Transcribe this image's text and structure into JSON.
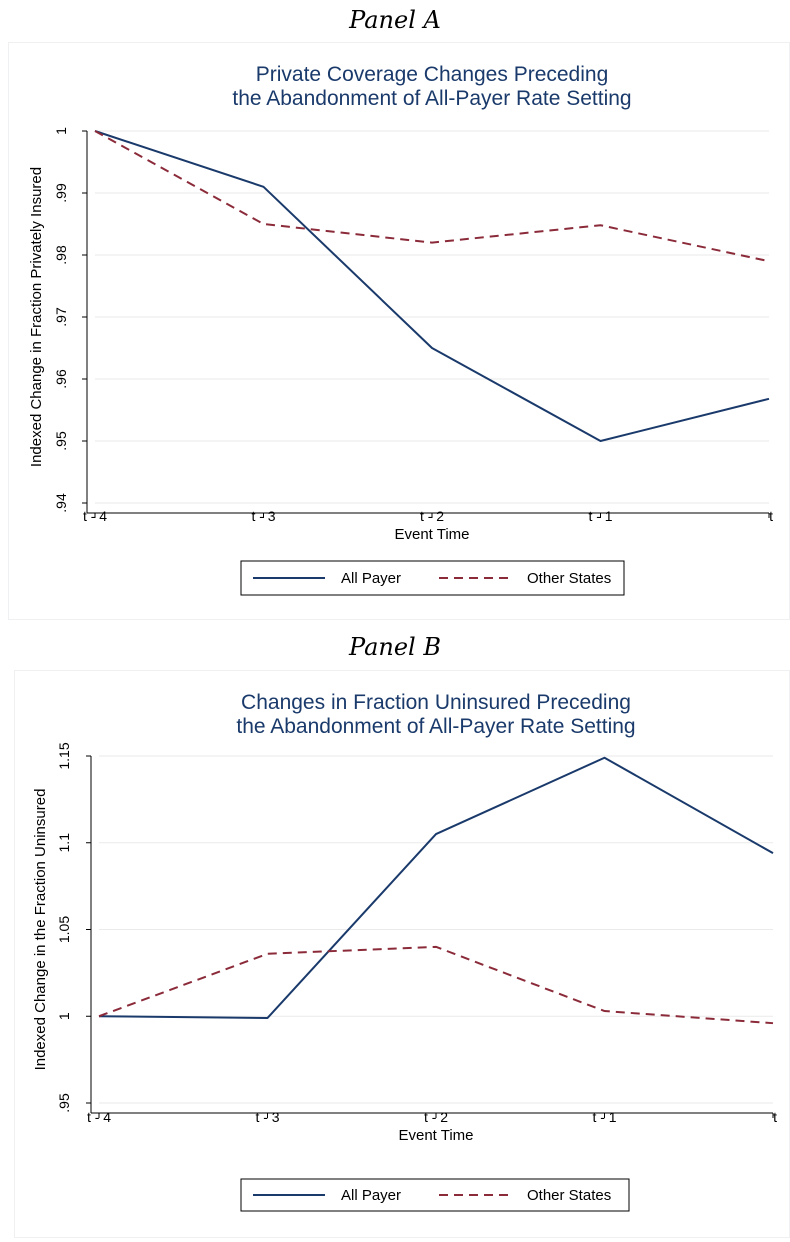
{
  "panel_a_label": "Panel A",
  "panel_b_label": "Panel B",
  "chart_data": [
    {
      "type": "line",
      "title_lines": [
        "Private Coverage Changes Preceding",
        "the Abandonment of All-Payer Rate Setting"
      ],
      "xlabel": "Event Time",
      "ylabel": "Indexed Change in Fraction Privately Insured",
      "categories": [
        "t - 4",
        "t - 3",
        "t - 2",
        "t - 1",
        "t"
      ],
      "ylim": [
        0.94,
        1.0
      ],
      "yticks": [
        0.94,
        0.95,
        0.96,
        0.97,
        0.98,
        0.99,
        1
      ],
      "ytick_labels": [
        ".94",
        ".95",
        ".96",
        ".97",
        ".98",
        ".99",
        "1"
      ],
      "grid": true,
      "legend_position": "bottom",
      "series": [
        {
          "name": "All Payer",
          "values": [
            1.0,
            0.991,
            0.965,
            0.95,
            0.9568
          ],
          "color": "#1a3a6b",
          "dash": "solid"
        },
        {
          "name": "Other States",
          "values": [
            1.0,
            0.985,
            0.982,
            0.9848,
            0.979
          ],
          "color": "#8b2b3a",
          "dash": "dashed"
        }
      ]
    },
    {
      "type": "line",
      "title_lines": [
        "Changes in Fraction Uninsured Preceding",
        "the Abandonment of All-Payer Rate Setting"
      ],
      "xlabel": "Event Time",
      "ylabel": "Indexed Change in the Fraction Uninsured",
      "categories": [
        "t - 4",
        "t - 3",
        "t - 2",
        "t - 1",
        "t"
      ],
      "ylim": [
        0.95,
        1.15
      ],
      "yticks": [
        0.95,
        1,
        1.05,
        1.1,
        1.15
      ],
      "ytick_labels": [
        ".95",
        "1",
        "1.05",
        "1.1",
        "1.15"
      ],
      "grid": true,
      "legend_position": "bottom",
      "series": [
        {
          "name": "All Payer",
          "values": [
            1.0,
            0.999,
            1.105,
            1.149,
            1.094
          ],
          "color": "#1a3a6b",
          "dash": "solid"
        },
        {
          "name": "Other States",
          "values": [
            1.0,
            1.036,
            1.04,
            1.003,
            0.996
          ],
          "color": "#8b2b3a",
          "dash": "dashed"
        }
      ]
    }
  ]
}
